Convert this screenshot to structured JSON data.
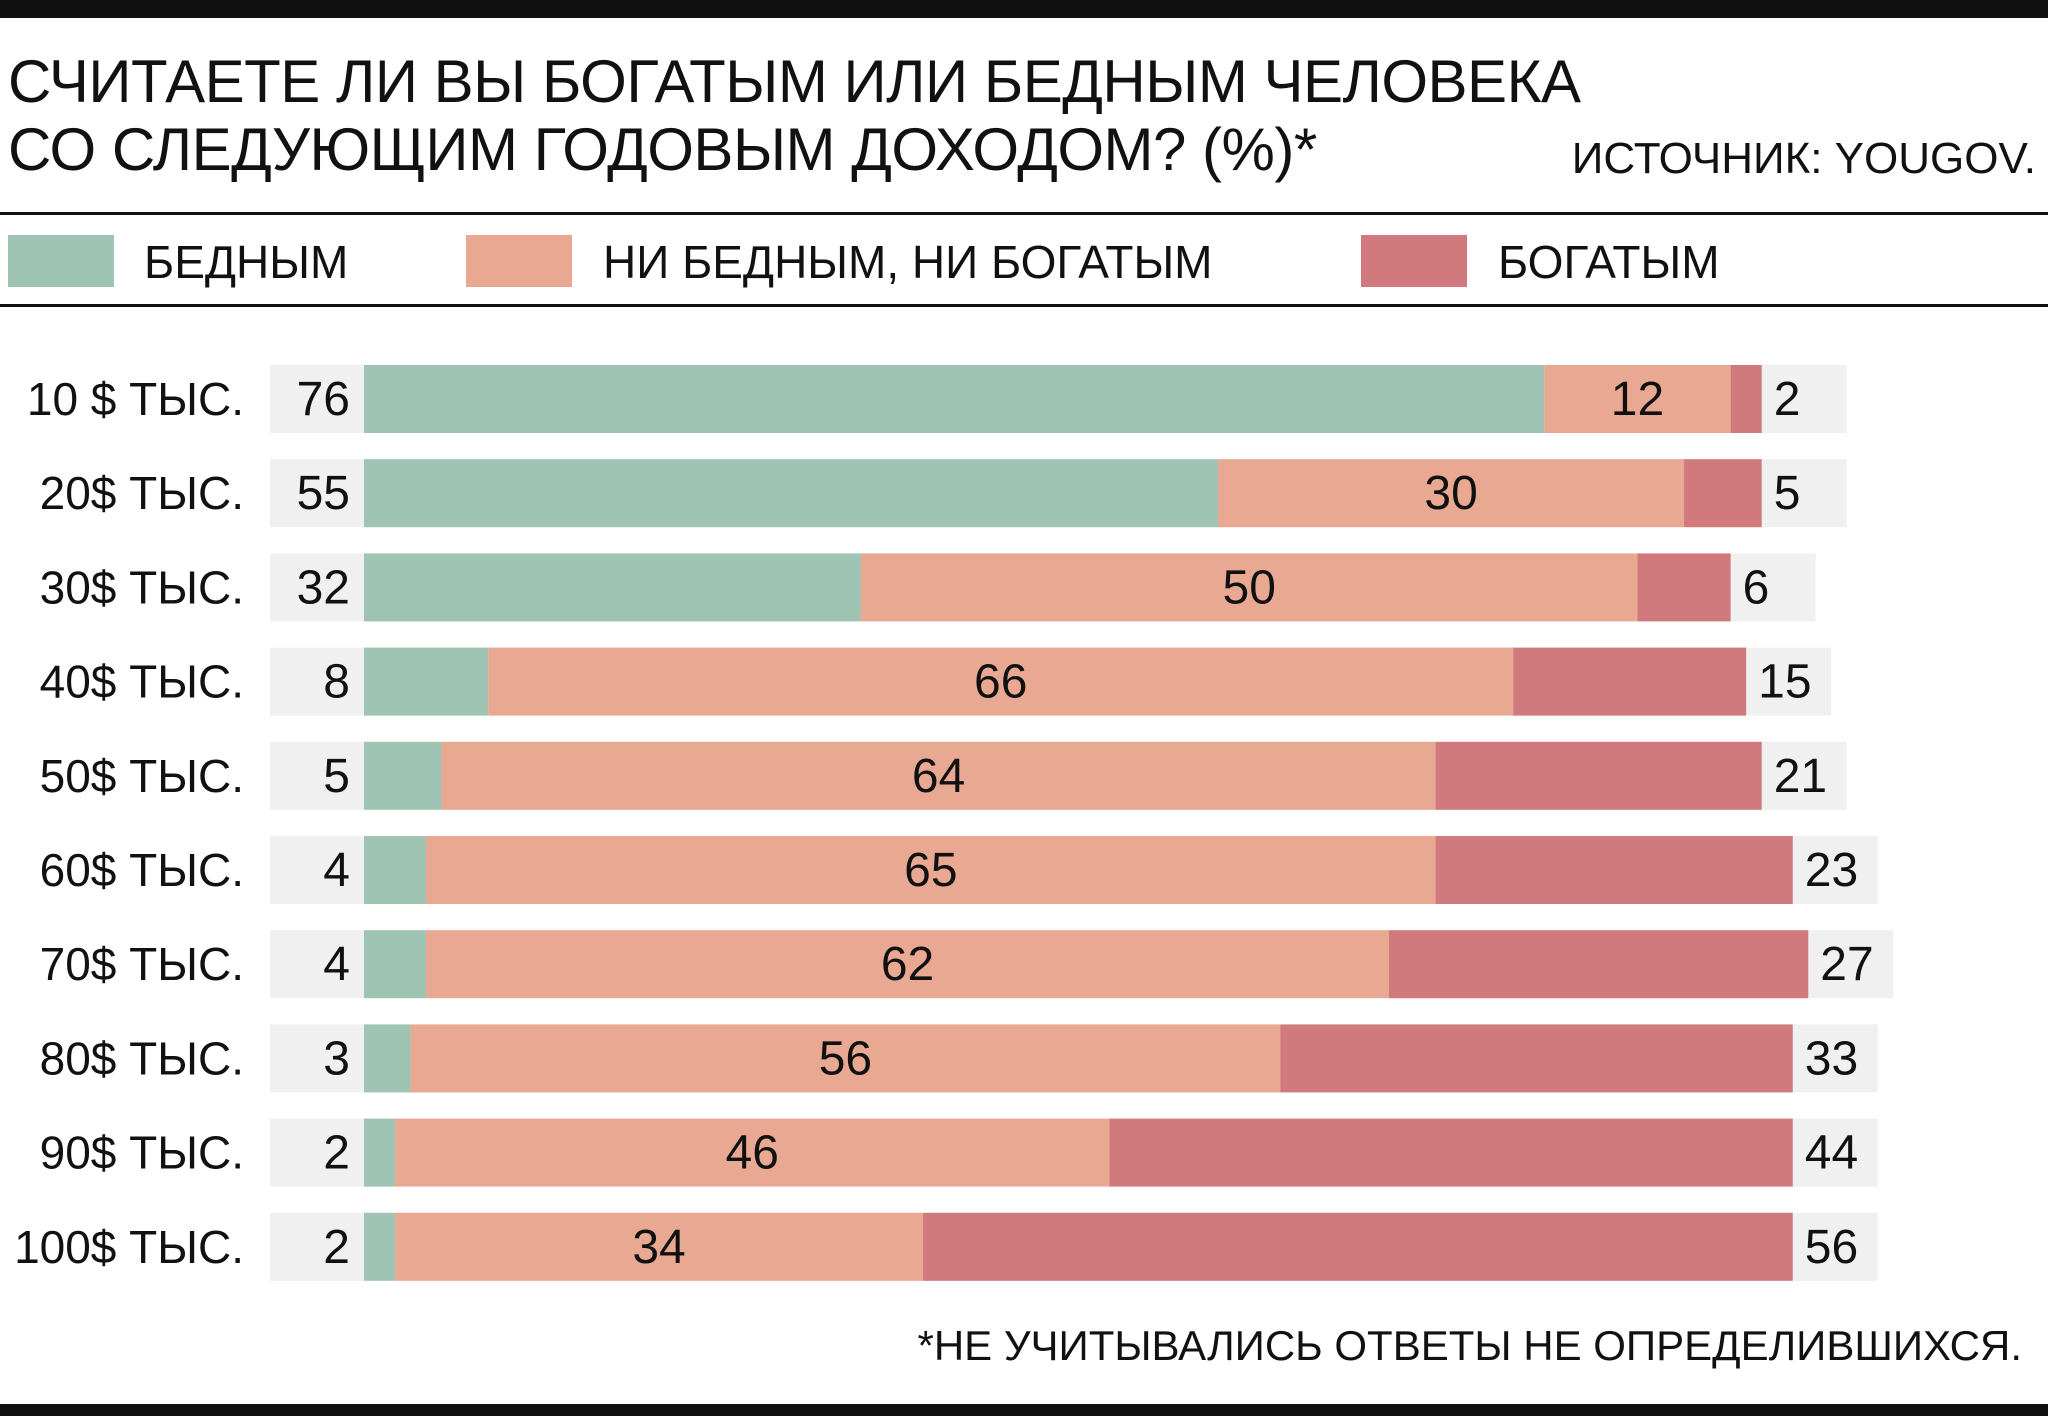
{
  "title_line1": "СЧИТАЕТЕ ЛИ ВЫ БОГАТЫМ ИЛИ БЕДНЫМ ЧЕЛОВЕКА",
  "title_line2": "СО СЛЕДУЮЩИМ ГОДОВЫМ ДОХОДОМ? (%)*",
  "source": "ИСТОЧНИК: YOUGOV.",
  "footnote": "*НЕ УЧИТЫВАЛИСЬ ОТВЕТЫ НЕ ОПРЕДЕЛИВШИХСЯ.",
  "colors": {
    "poor": "#a0c4b3",
    "neither": "#e8a891",
    "rich": "#d07a7e",
    "row_bg": "#f0f0f0"
  },
  "chart_data": {
    "type": "bar",
    "orientation": "horizontal",
    "stacked": true,
    "title": "СЧИТАЕТЕ ЛИ ВЫ БОГАТЫМ ИЛИ БЕДНЫМ ЧЕЛОВЕКА СО СЛЕДУЮЩИМ ГОДОВЫМ ДОХОДОМ? (%)*",
    "xlabel": "",
    "ylabel": "",
    "xlim": [
      0,
      100
    ],
    "legend_position": "top",
    "categories": [
      "10 $ ТЫС.",
      "20$ ТЫС.",
      "30$ ТЫС.",
      "40$ ТЫС.",
      "50$ ТЫС.",
      "60$ ТЫС.",
      "70$ ТЫС.",
      "80$ ТЫС.",
      "90$ ТЫС.",
      "100$ ТЫС."
    ],
    "series": [
      {
        "name": "БЕДНЫМ",
        "values": [
          76,
          55,
          32,
          8,
          5,
          4,
          4,
          3,
          2,
          2
        ]
      },
      {
        "name": "НИ БЕДНЫМ, НИ БОГАТЫМ",
        "values": [
          12,
          30,
          50,
          66,
          64,
          65,
          62,
          56,
          46,
          34
        ]
      },
      {
        "name": "БОГАТЫМ",
        "values": [
          2,
          5,
          6,
          15,
          21,
          23,
          27,
          33,
          44,
          56
        ]
      }
    ]
  }
}
